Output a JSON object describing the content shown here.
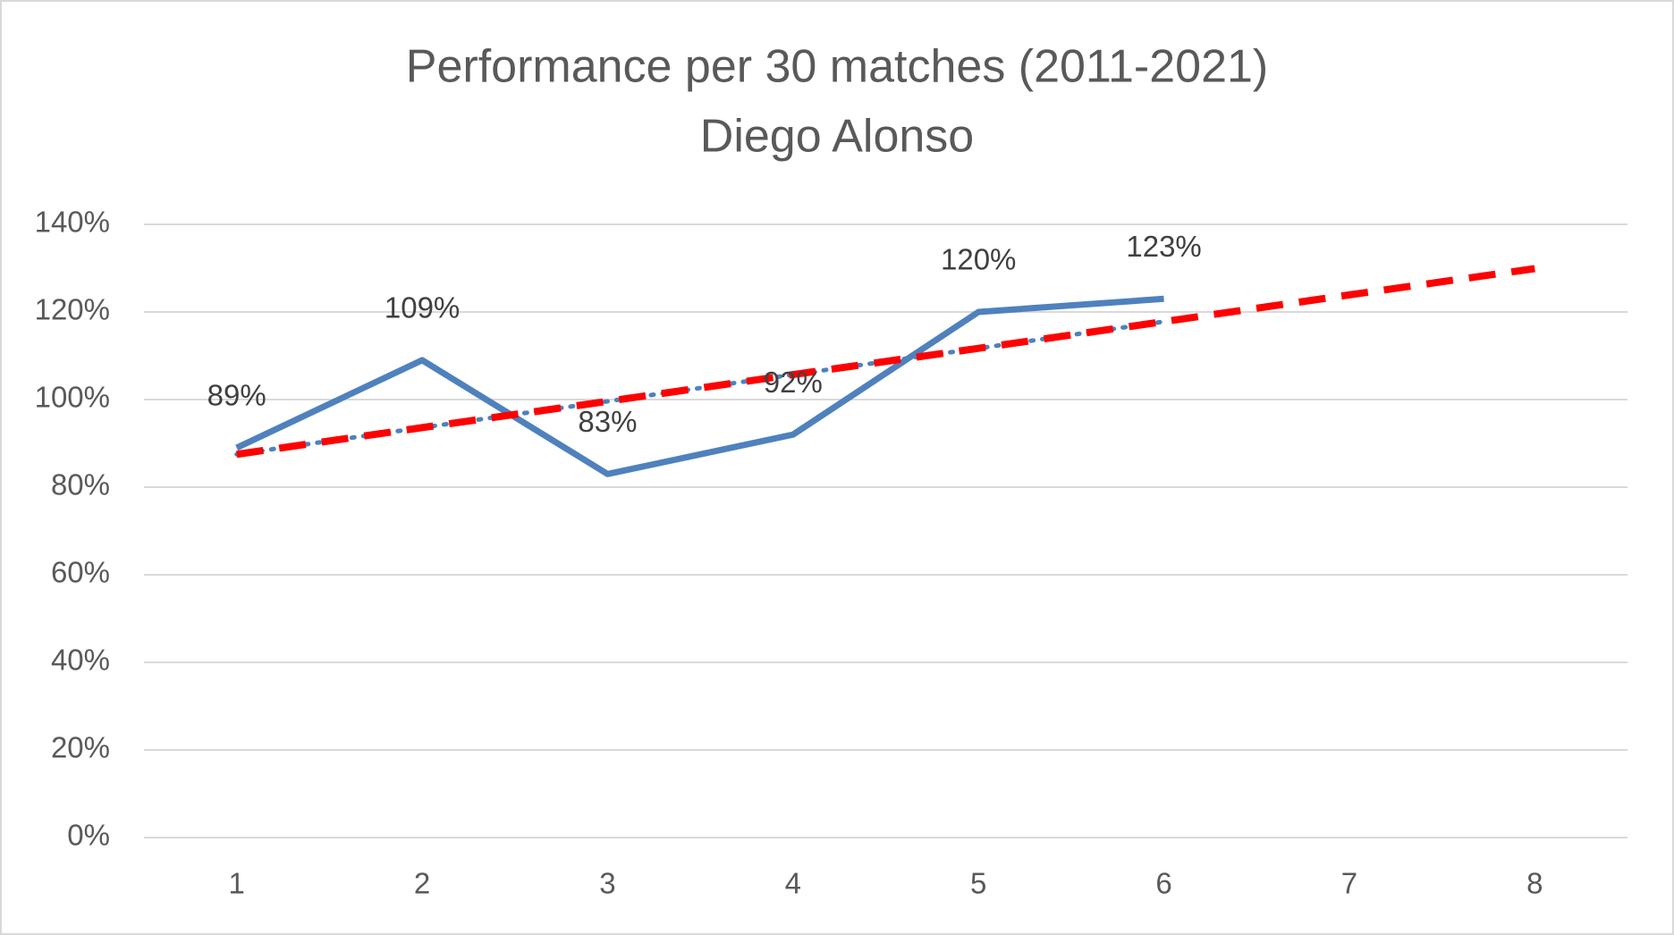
{
  "chart_data": {
    "type": "line",
    "title": "Performance per 30 matches (2011-2021)",
    "subtitle": "Diego Alonso",
    "categories": [
      "1",
      "2",
      "3",
      "4",
      "5",
      "6",
      "7",
      "8"
    ],
    "series": [
      {
        "color": "#4f81bd",
        "style": "solid",
        "values": [
          89,
          109,
          83,
          92,
          120,
          123,
          null,
          null
        ],
        "value_labels": [
          "89%",
          "109%",
          "83%",
          "92%",
          "120%",
          "123%",
          null,
          null
        ]
      },
      {
        "color": "#4f81bd",
        "style": "dotted",
        "values": [
          87.5,
          93.6,
          99.6,
          105.7,
          111.7,
          117.8,
          null,
          null
        ]
      },
      {
        "color": "#ff0000",
        "style": "dashed",
        "values": [
          87.5,
          93.6,
          99.6,
          105.7,
          111.7,
          117.8,
          123.9,
          129.9
        ]
      }
    ],
    "ylim": [
      0,
      140
    ],
    "yticks": [
      {
        "value": 0,
        "label": "0%"
      },
      {
        "value": 20,
        "label": "20%"
      },
      {
        "value": 40,
        "label": "40%"
      },
      {
        "value": 60,
        "label": "60%"
      },
      {
        "value": 80,
        "label": "80%"
      },
      {
        "value": 100,
        "label": "100%"
      },
      {
        "value": 120,
        "label": "120%"
      },
      {
        "value": 140,
        "label": "140%"
      }
    ],
    "grid": true
  }
}
